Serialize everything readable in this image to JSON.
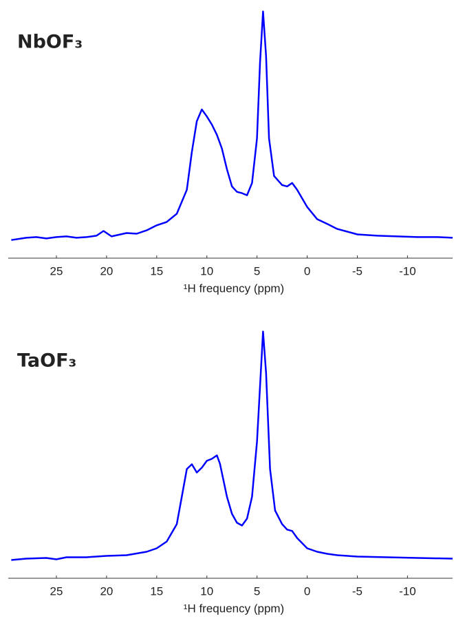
{
  "chart_data": [
    {
      "type": "line",
      "title": "NbOF₃",
      "xlabel": "¹H frequency (ppm)",
      "xlim": [
        29.8,
        -14.5
      ],
      "ylim": [
        -9,
        102
      ],
      "xticks": [
        25,
        20,
        15,
        10,
        5,
        0,
        -5,
        -10
      ],
      "x": [
        29.5,
        28,
        27,
        26,
        25,
        24,
        23,
        22,
        21,
        20.3,
        19.5,
        18,
        17,
        16,
        15,
        14,
        13,
        12,
        11.5,
        11,
        10.5,
        10,
        9.5,
        9,
        8.5,
        8,
        7.5,
        7,
        6.5,
        6,
        5.5,
        5,
        4.7,
        4.4,
        4.1,
        3.8,
        3.3,
        2.5,
        2,
        1.5,
        1,
        0,
        -1,
        -2,
        -3,
        -4,
        -5,
        -7,
        -9,
        -11,
        -13,
        -14.5
      ],
      "series": [
        {
          "color": "#0000ff",
          "values": [
            -1,
            0,
            0.3,
            -0.3,
            0.3,
            0.6,
            0,
            0.3,
            0.9,
            3,
            0.6,
            2.1,
            1.8,
            3.3,
            5.5,
            7,
            10.6,
            21.2,
            37.9,
            51.5,
            56.7,
            53.6,
            50,
            45.5,
            39.4,
            30.3,
            22.7,
            20.3,
            19.7,
            18.8,
            24.2,
            43.9,
            77.3,
            100,
            80.3,
            43.9,
            27.3,
            23.3,
            22.7,
            24.2,
            21.2,
            13.6,
            8.2,
            6.1,
            3.9,
            2.7,
            1.5,
            0.9,
            0.6,
            0.3,
            0.3,
            0
          ]
        }
      ]
    },
    {
      "type": "line",
      "title": "TaOF₃",
      "xlabel": "¹H frequency (ppm)",
      "xlim": [
        29.8,
        -14.5
      ],
      "ylim": [
        -8,
        102
      ],
      "xticks": [
        25,
        20,
        15,
        10,
        5,
        0,
        -5,
        -10
      ],
      "x": [
        29.5,
        28,
        26,
        25,
        24,
        22,
        20,
        18,
        16,
        15,
        14,
        13,
        12.5,
        12,
        11.5,
        11,
        10.5,
        10,
        9.5,
        9,
        8.7,
        8,
        7.5,
        7,
        6.5,
        6,
        5.5,
        5,
        4.7,
        4.4,
        4.1,
        3.7,
        3.2,
        2.5,
        2,
        1.5,
        1,
        0,
        -1,
        -2,
        -3,
        -5,
        -8,
        -11,
        -14.5
      ],
      "series": [
        {
          "color": "#0000ff",
          "values": [
            0,
            0.6,
            0.9,
            0.3,
            1.2,
            1.2,
            1.8,
            2.1,
            3.6,
            5.1,
            8.1,
            15.7,
            27.7,
            39.8,
            41.9,
            38.3,
            40.4,
            43.4,
            44.3,
            45.8,
            42.2,
            27.7,
            20.2,
            16.3,
            15.1,
            18.1,
            27.7,
            51.8,
            75.9,
            100,
            81.9,
            39.8,
            21.7,
            15.7,
            13.3,
            12.7,
            9.6,
            5.1,
            3.6,
            2.7,
            2.1,
            1.5,
            1.2,
            0.9,
            0.6
          ]
        }
      ]
    }
  ]
}
